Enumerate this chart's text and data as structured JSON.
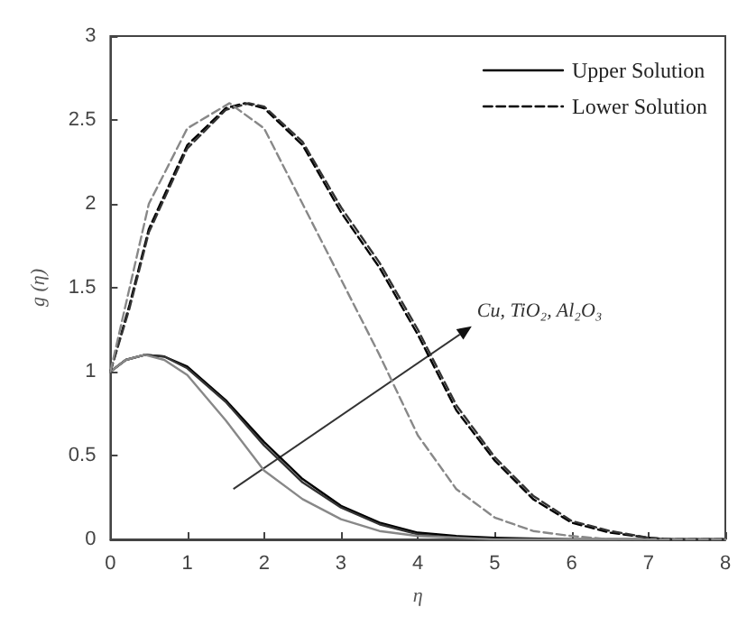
{
  "chart_data": {
    "type": "line",
    "xlabel": "η",
    "ylabel": "g (η)",
    "xlim": [
      0,
      8
    ],
    "xticks": [
      0,
      1,
      2,
      3,
      4,
      5,
      6,
      7,
      8
    ],
    "ylim": [
      0,
      3
    ],
    "yticks": [
      0,
      0.5,
      1,
      1.5,
      2,
      2.5,
      3
    ],
    "grid": false,
    "legend": "top right",
    "marker": "none",
    "annotations": [
      "Cu, TiO₂, Al₂O₃"
    ],
    "series": [
      {
        "name": "Upper Solution",
        "color": "#000000",
        "line_style": "solid",
        "x": [
          0,
          0.2,
          0.45,
          0.7,
          1,
          1.5,
          2,
          2.5,
          3,
          3.5,
          4,
          4.5,
          5,
          6,
          8
        ],
        "values": [
          1,
          1.07,
          1.1,
          1.09,
          1.03,
          0.83,
          0.58,
          0.36,
          0.2,
          0.1,
          0.04,
          0.02,
          0.01,
          0,
          0
        ]
      },
      {
        "color": "#333333",
        "line_style": "solid",
        "x": [
          0,
          0.2,
          0.45,
          0.7,
          1,
          1.5,
          2,
          2.5,
          3,
          3.5,
          4,
          4.5,
          5,
          6,
          8
        ],
        "values": [
          1,
          1.07,
          1.1,
          1.09,
          1.02,
          0.82,
          0.56,
          0.34,
          0.19,
          0.09,
          0.03,
          0.01,
          0,
          0,
          0
        ]
      },
      {
        "color": "#888888",
        "line_style": "solid",
        "x": [
          0,
          0.2,
          0.45,
          0.7,
          1,
          1.5,
          2,
          2.5,
          3,
          3.5,
          4,
          5,
          8
        ],
        "values": [
          1,
          1.07,
          1.1,
          1.07,
          0.98,
          0.71,
          0.41,
          0.24,
          0.12,
          0.05,
          0.02,
          0,
          0
        ]
      },
      {
        "name": "Lower Solution",
        "color": "#000000",
        "line_style": "dashed",
        "x": [
          0,
          0.25,
          0.5,
          1,
          1.5,
          1.75,
          2,
          2.5,
          3,
          3.5,
          4,
          4.5,
          5,
          5.5,
          6,
          6.5,
          7,
          7.3,
          8
        ],
        "values": [
          1,
          1.4,
          1.85,
          2.35,
          2.57,
          2.6,
          2.57,
          2.35,
          1.95,
          1.62,
          1.22,
          0.77,
          0.47,
          0.24,
          0.1,
          0.04,
          0.01,
          0,
          0
        ]
      },
      {
        "color": "#333333",
        "line_style": "dashed",
        "x": [
          0,
          0.25,
          0.5,
          1,
          1.5,
          1.8,
          2,
          2.5,
          3,
          3.5,
          4,
          4.5,
          5,
          5.5,
          6,
          6.5,
          7,
          7.3,
          8
        ],
        "values": [
          1,
          1.38,
          1.83,
          2.33,
          2.56,
          2.6,
          2.58,
          2.37,
          1.98,
          1.65,
          1.25,
          0.8,
          0.49,
          0.26,
          0.11,
          0.05,
          0.01,
          0,
          0
        ]
      },
      {
        "color": "#888888",
        "line_style": "dashed",
        "x": [
          0,
          0.25,
          0.5,
          1,
          1.55,
          2,
          2.5,
          3,
          3.5,
          4,
          4.5,
          5,
          5.5,
          6,
          6.5,
          8
        ],
        "values": [
          1,
          1.5,
          2.0,
          2.45,
          2.6,
          2.45,
          2.0,
          1.55,
          1.1,
          0.62,
          0.3,
          0.13,
          0.05,
          0.02,
          0,
          0
        ]
      }
    ]
  }
}
